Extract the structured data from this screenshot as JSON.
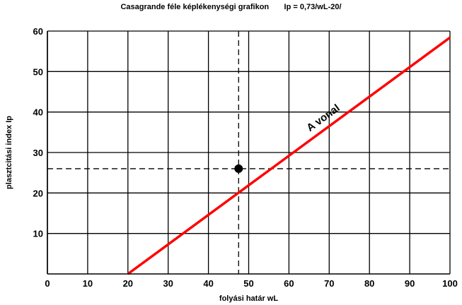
{
  "chart_data": {
    "type": "line",
    "title": "Casagrande féle képlékenységi grafikon       Ip = 0,73/wL-20/",
    "xlabel": "folyási határ  wL",
    "ylabel": "plasztcitási index  Ip",
    "xlim": [
      0,
      100
    ],
    "ylim": [
      0,
      60
    ],
    "x_ticks": [
      0,
      10,
      20,
      30,
      40,
      50,
      60,
      70,
      80,
      90,
      100
    ],
    "y_ticks": [
      10,
      20,
      30,
      40,
      50,
      60
    ],
    "grid": true,
    "series": [
      {
        "name": "A vonal",
        "x": [
          20,
          100
        ],
        "y": [
          0,
          58.4
        ],
        "color": "#ff0000"
      }
    ],
    "points": [
      {
        "x": 47.5,
        "y": 26,
        "color": "#000000"
      }
    ],
    "reference_lines": {
      "vertical_x": 47.5,
      "horizontal_y": 26
    }
  }
}
